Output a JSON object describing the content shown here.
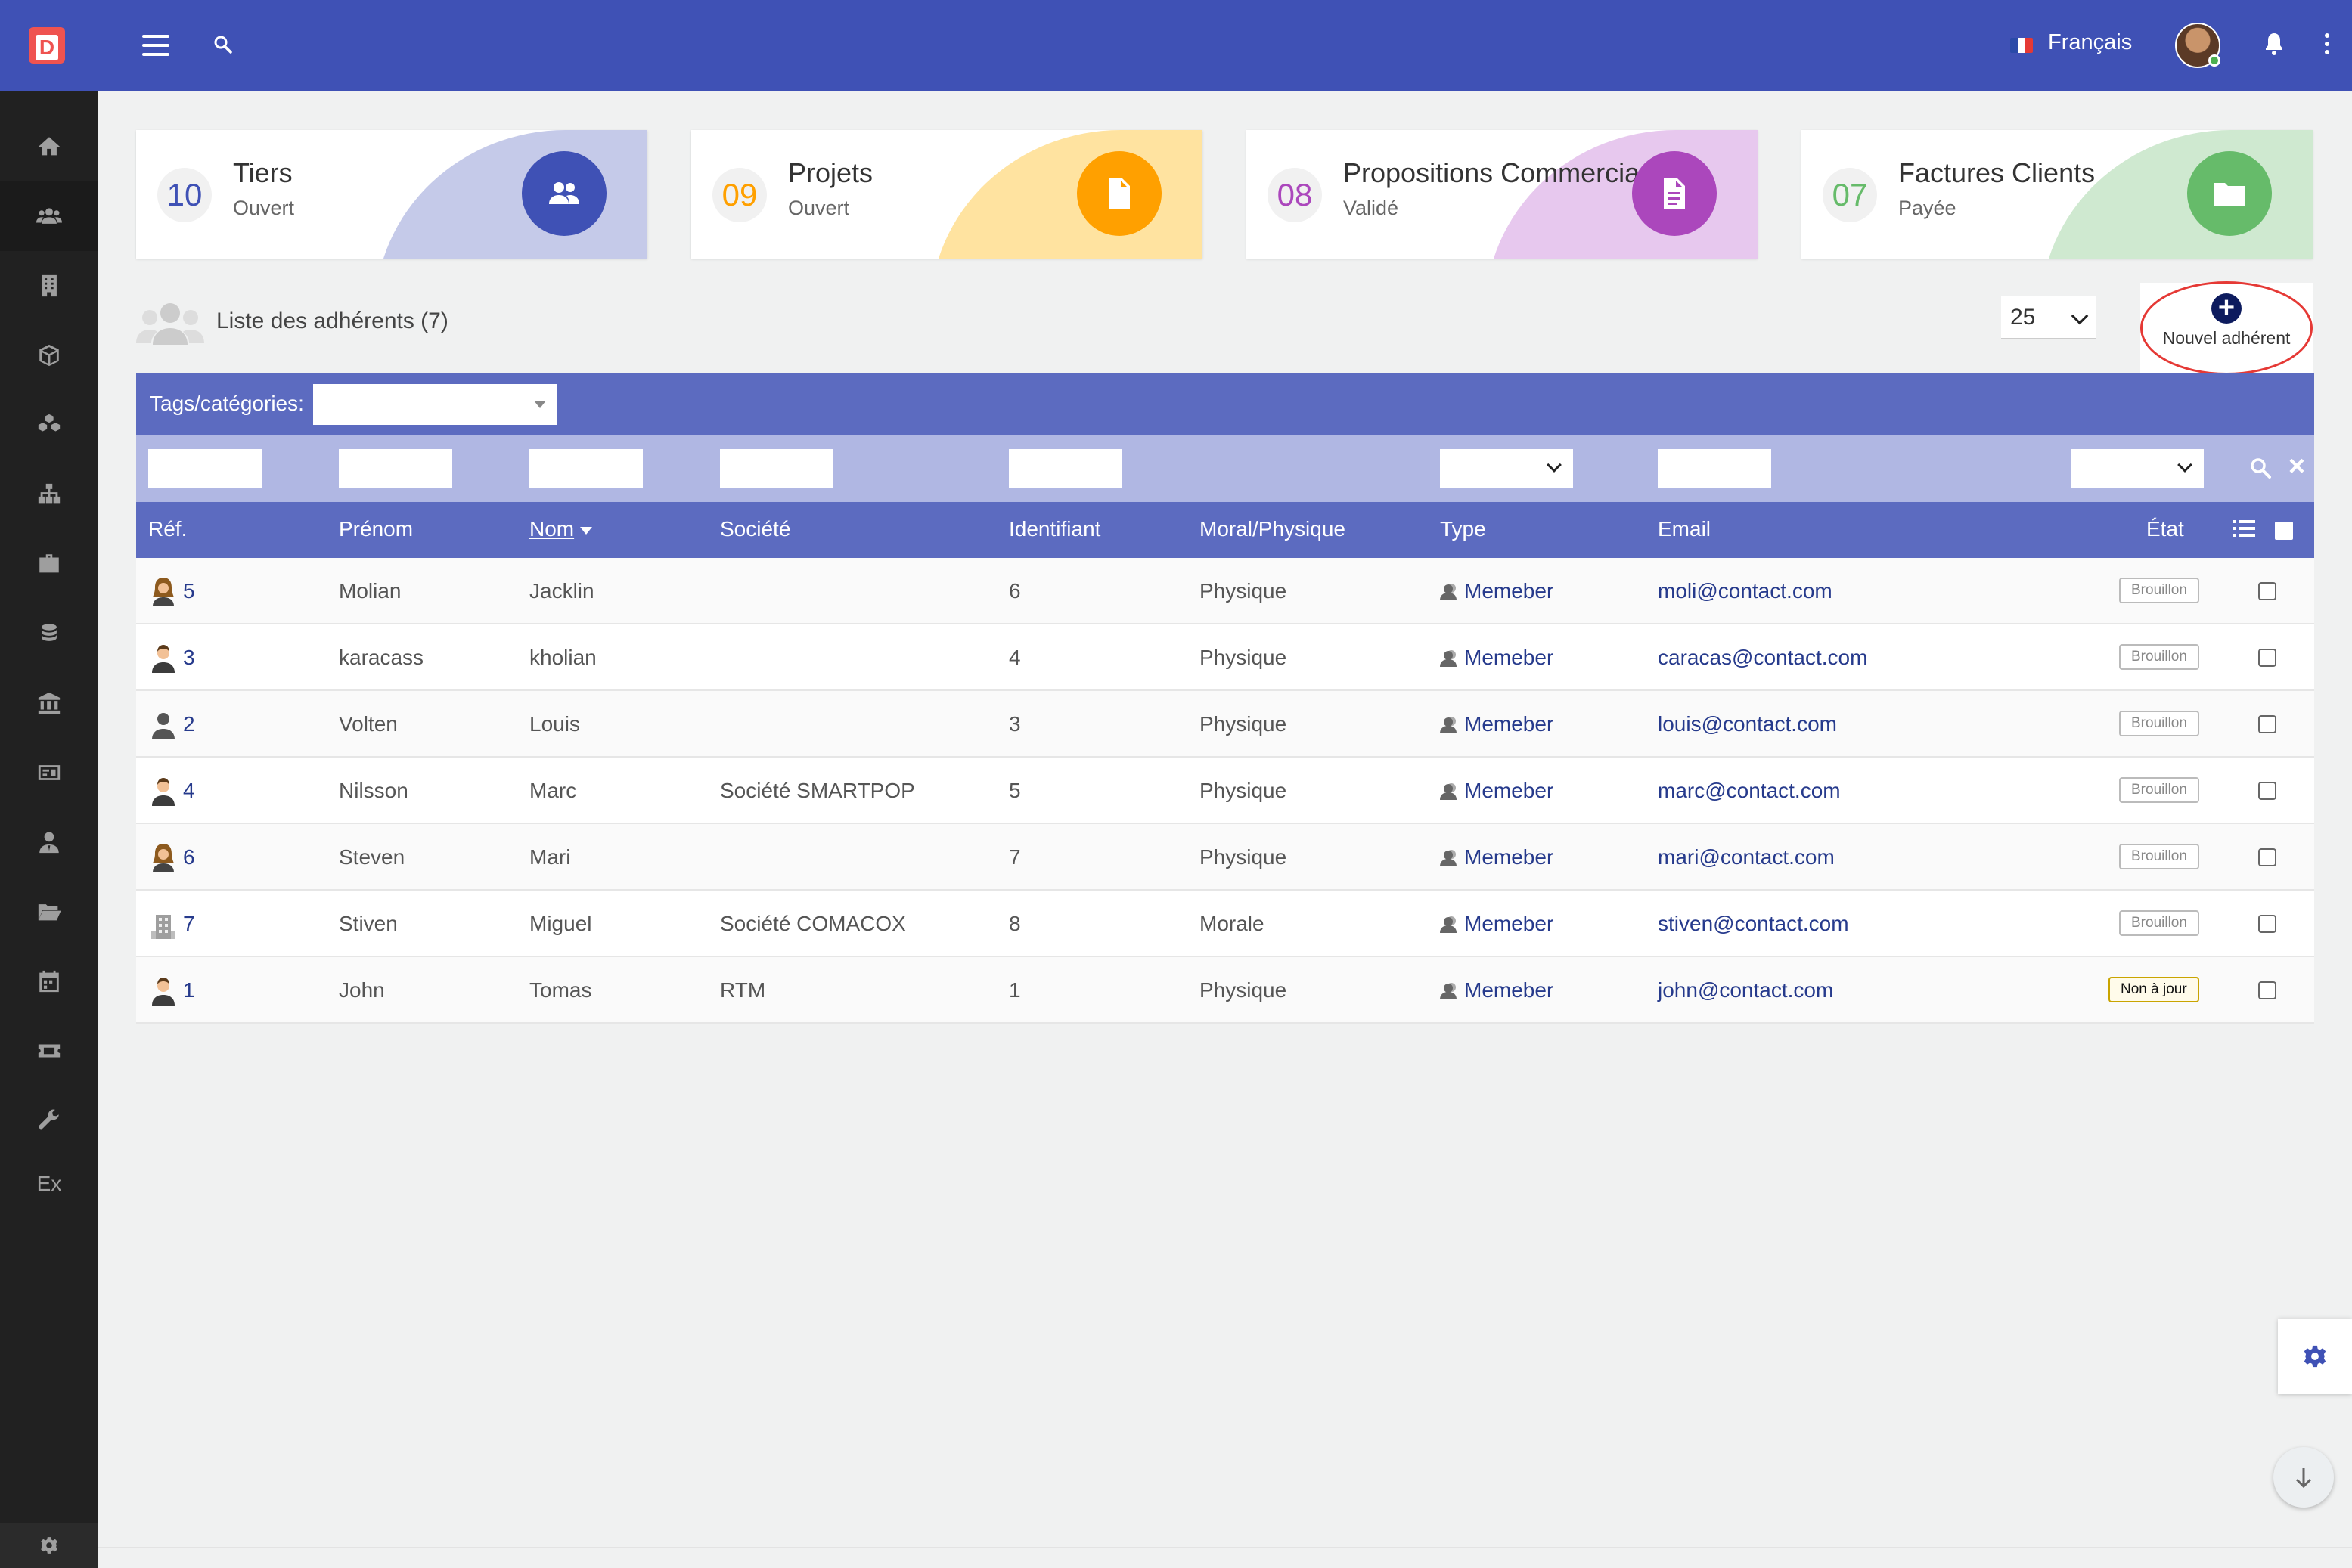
{
  "app": {
    "logo_letter": "D",
    "language": "Français"
  },
  "colors": {
    "topbar": "#3f51b5",
    "table_header": "#5c6bc0",
    "filter_bar": "#b0b7e3",
    "sidebar": "#212121"
  },
  "sidebar": {
    "items": [
      "home-icon",
      "users-icon",
      "building-icon",
      "box-icon",
      "cubes-icon",
      "sitemap-icon",
      "briefcase-icon",
      "coins-icon",
      "bank-icon",
      "money-icon",
      "user-tie-icon",
      "folder-open-icon",
      "calendar-icon",
      "ticket-icon",
      "wrench-icon"
    ],
    "ex_label": "Ex"
  },
  "cards": [
    {
      "number": "10",
      "title": "Tiers",
      "subtitle": "Ouvert",
      "color": "#3f51b5",
      "blob": "#c5cae9",
      "icon": "users-icon"
    },
    {
      "number": "09",
      "title": "Projets",
      "subtitle": "Ouvert",
      "color": "#ffa000",
      "blob": "#ffe3a0",
      "icon": "file-icon"
    },
    {
      "number": "08",
      "title": "Propositions Commercia",
      "subtitle": "Validé",
      "color": "#ab47bc",
      "blob": "#e7c8ee",
      "icon": "document-icon"
    },
    {
      "number": "07",
      "title": "Factures Clients",
      "subtitle": "Payée",
      "color": "#66bb6a",
      "blob": "#cfe9d0",
      "icon": "folder-icon"
    }
  ],
  "list": {
    "title": "Liste des adhérents (7)",
    "limit": "25",
    "new_button": "Nouvel adhérent",
    "tags_label": "Tags/catégories:"
  },
  "columns": {
    "ref": "Réf.",
    "firstname": "Prénom",
    "lastname": "Nom",
    "company": "Société",
    "login": "Identifiant",
    "nature": "Moral/Physique",
    "type": "Type",
    "email": "Email",
    "status": "État"
  },
  "rows": [
    {
      "ref": "5",
      "icon": "woman",
      "firstname": "Molian",
      "lastname": "Jacklin",
      "company": "",
      "login": "6",
      "nature": "Physique",
      "type": "Memeber",
      "email": "moli@contact.com",
      "status": "Brouillon",
      "status_kind": "draft"
    },
    {
      "ref": "3",
      "icon": "man",
      "firstname": "karacass",
      "lastname": "kholian",
      "company": "",
      "login": "4",
      "nature": "Physique",
      "type": "Memeber",
      "email": "caracas@contact.com",
      "status": "Brouillon",
      "status_kind": "draft"
    },
    {
      "ref": "2",
      "icon": "generic",
      "firstname": "Volten",
      "lastname": "Louis",
      "company": "",
      "login": "3",
      "nature": "Physique",
      "type": "Memeber",
      "email": "louis@contact.com",
      "status": "Brouillon",
      "status_kind": "draft"
    },
    {
      "ref": "4",
      "icon": "man",
      "firstname": "Nilsson",
      "lastname": "Marc",
      "company": "Société SMARTPOP",
      "login": "5",
      "nature": "Physique",
      "type": "Memeber",
      "email": "marc@contact.com",
      "status": "Brouillon",
      "status_kind": "draft"
    },
    {
      "ref": "6",
      "icon": "woman",
      "firstname": "Steven",
      "lastname": "Mari",
      "company": "",
      "login": "7",
      "nature": "Physique",
      "type": "Memeber",
      "email": "mari@contact.com",
      "status": "Brouillon",
      "status_kind": "draft"
    },
    {
      "ref": "7",
      "icon": "company",
      "firstname": "Stiven",
      "lastname": "Miguel",
      "company": "Société COMACOX",
      "login": "8",
      "nature": "Morale",
      "type": "Memeber",
      "email": "stiven@contact.com",
      "status": "Brouillon",
      "status_kind": "draft"
    },
    {
      "ref": "1",
      "icon": "man",
      "firstname": "John",
      "lastname": "Tomas",
      "company": "RTM",
      "login": "1",
      "nature": "Physique",
      "type": "Memeber",
      "email": "john@contact.com",
      "status": "Non à jour",
      "status_kind": "warn"
    }
  ]
}
